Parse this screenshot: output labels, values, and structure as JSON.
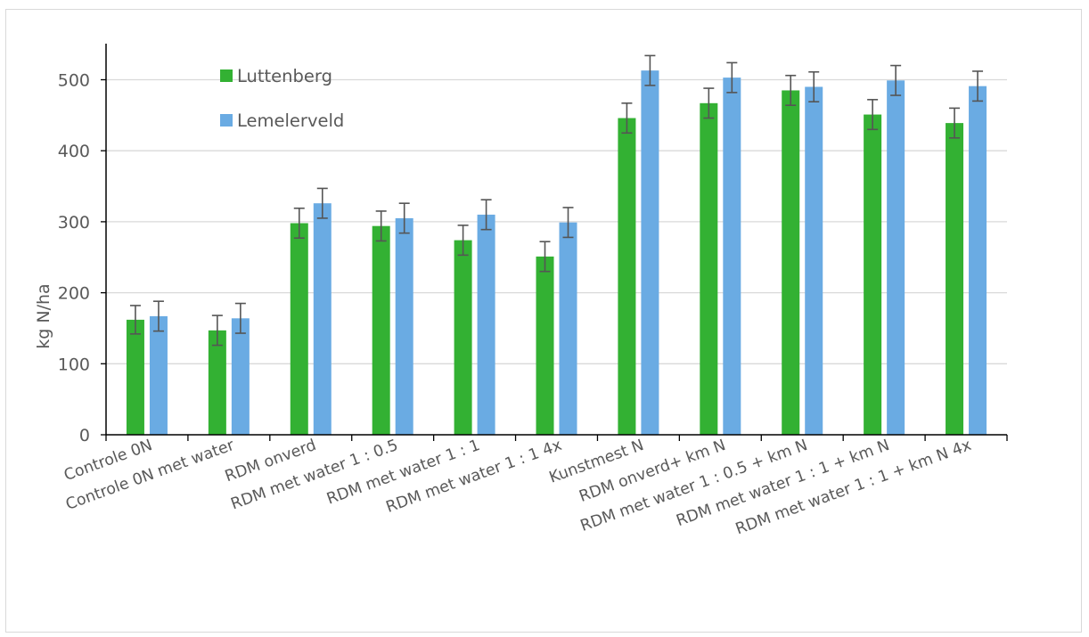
{
  "chart_data": {
    "type": "bar",
    "ylabel": "kg N/ha",
    "ylim": [
      0,
      550
    ],
    "yticks": [
      0,
      100,
      200,
      300,
      400,
      500
    ],
    "grid": true,
    "legend_position": "top-left",
    "categories": [
      "Controle 0N",
      "Controle 0N met water",
      "RDM onverd",
      "RDM met water 1 : 0.5",
      "RDM met water 1 : 1",
      "RDM met water 1 : 1 4x",
      "Kunstmest N",
      "RDM onverd+ km N",
      "RDM met water 1 : 0.5 + km N",
      "RDM met water 1 : 1 + km N",
      "RDM met water 1 : 1 + km N 4x"
    ],
    "series": [
      {
        "name": "Luttenberg",
        "color": "#33b133",
        "values": [
          162,
          147,
          298,
          294,
          274,
          251,
          446,
          467,
          485,
          451,
          439
        ],
        "error": [
          20,
          21,
          21,
          21,
          21,
          21,
          21,
          21,
          21,
          21,
          21
        ]
      },
      {
        "name": "Lemelerveld",
        "color": "#6aabe3",
        "values": [
          167,
          164,
          326,
          305,
          310,
          299,
          513,
          503,
          490,
          499,
          491
        ],
        "error": [
          21,
          21,
          21,
          21,
          21,
          21,
          21,
          21,
          21,
          21,
          21
        ]
      }
    ]
  }
}
